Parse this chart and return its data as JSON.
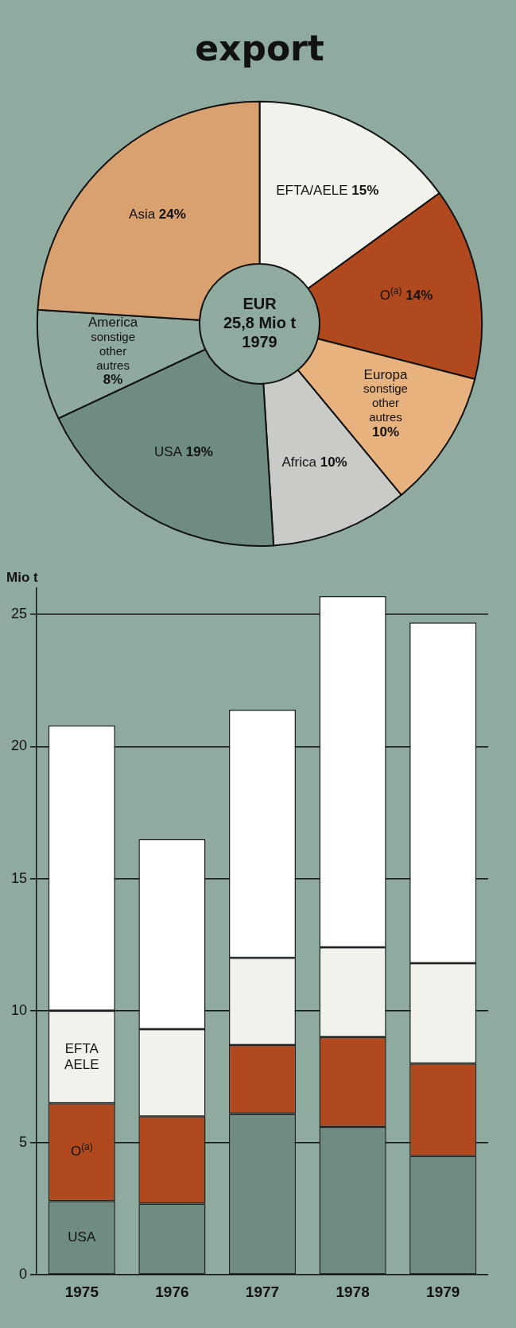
{
  "chart_data": [
    {
      "type": "donut",
      "title": "export",
      "categories": [
        "EFTA/AELE",
        "O$^{(a)}$",
        "Europa\nsonstige\nother\nautres",
        "Africa",
        "USA",
        "America\nsonstige\nother\nautres",
        "Asia"
      ],
      "values": [
        15,
        14,
        10,
        10,
        19,
        8,
        24
      ],
      "value_labels": [
        "15%",
        "14%",
        "10%",
        "10%",
        "19%",
        "8%",
        "24%"
      ],
      "colors": [
        "#f2f2ec",
        "#b04a1e",
        "#e8b27e",
        "#c9ccc6",
        "#6e8c80",
        "#8eaa9e",
        "#d9a070"
      ],
      "annotations": [
        "EUR\n25,8 Mio t\n1979"
      ],
      "legend": false
    },
    {
      "type": "bar",
      "stacked": true,
      "ylabel": "Mio t",
      "categories": [
        "1975",
        "1976",
        "1977",
        "1978",
        "1979"
      ],
      "series": [
        {
          "name": "USA",
          "color": "#6e8c80",
          "values": [
            2.8,
            2.7,
            6.1,
            5.6,
            4.5
          ]
        },
        {
          "name": "O$^{(a)}$",
          "color": "#b04a1e",
          "values": [
            3.7,
            3.3,
            2.6,
            3.4,
            3.5
          ]
        },
        {
          "name": "EFTA\nAELE",
          "color": "#f2f2ec",
          "values": [
            3.5,
            3.3,
            3.3,
            3.4,
            3.8
          ]
        },
        {
          "color": "#ffffff",
          "values": [
            10.8,
            7.2,
            9.4,
            13.3,
            12.9
          ]
        }
      ],
      "ylim": [
        0,
        26
      ],
      "yticks": [
        0,
        5,
        10,
        15,
        20,
        25
      ],
      "grid": "y",
      "legend": false
    }
  ]
}
